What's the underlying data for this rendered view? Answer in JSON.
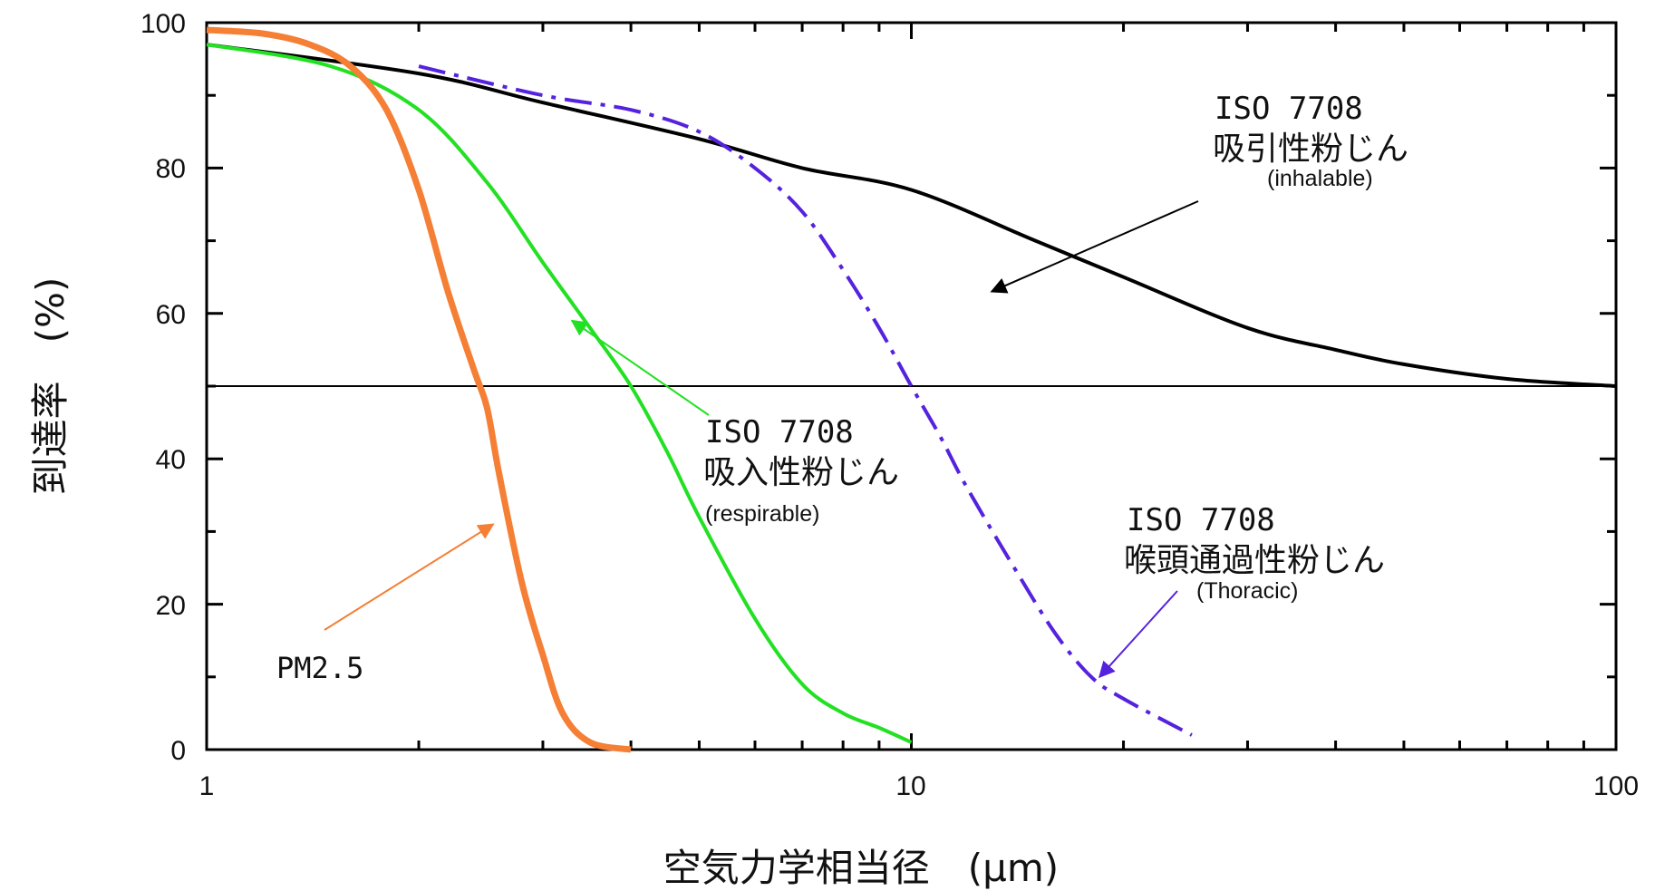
{
  "chart_data": {
    "type": "line",
    "title": "",
    "xlabel": "空気力学相当径　(μm)",
    "ylabel": "到達率　(%)",
    "xscale": "log",
    "xlim": [
      1,
      100
    ],
    "ylim": [
      0,
      100
    ],
    "xticks": [
      "1",
      "10",
      "100"
    ],
    "yticks": [
      "0",
      "20",
      "40",
      "60",
      "80",
      "100"
    ],
    "grid": false,
    "reference_line": {
      "y": 50,
      "color": "#000000"
    },
    "series": [
      {
        "name": "PM2.5",
        "color": "#f47f35",
        "style": "solid-thick",
        "x": [
          1.0,
          1.2,
          1.4,
          1.6,
          1.8,
          2.0,
          2.2,
          2.4,
          2.5,
          2.6,
          2.8,
          3.0,
          3.2,
          3.5,
          4.0
        ],
        "y": [
          99,
          98.5,
          97,
          94,
          88,
          77,
          63,
          52,
          47,
          38,
          23,
          13,
          5,
          1,
          0
        ]
      },
      {
        "name": "ISO 7708 吸入性粉じん",
        "color": "#22e022",
        "style": "solid",
        "x": [
          1.0,
          1.5,
          2.0,
          2.5,
          3.0,
          3.5,
          4.0,
          4.5,
          5.0,
          6.0,
          7.0,
          8.0,
          9.0,
          10.0
        ],
        "y": [
          97,
          94,
          88,
          78,
          67,
          58,
          50,
          41,
          32,
          18,
          9,
          5,
          3,
          1
        ]
      },
      {
        "name": "ISO 7708 喉頭通過性粉じん",
        "color": "#5522dd",
        "style": "dash-dot",
        "x": [
          2.0,
          3.0,
          4.0,
          5.0,
          6.0,
          7.0,
          8.0,
          9.0,
          10.0,
          11.0,
          12.0,
          14.0,
          16.0,
          18.0,
          20.0,
          25.0
        ],
        "y": [
          94,
          90,
          88,
          85,
          80,
          74,
          66,
          58,
          50,
          43,
          36,
          25,
          16,
          10,
          7,
          2
        ]
      },
      {
        "name": "ISO 7708 吸引性粉じん",
        "color": "#000000",
        "style": "solid",
        "x": [
          1,
          2,
          3,
          5,
          7,
          10,
          15,
          20,
          30,
          40,
          50,
          70,
          100
        ],
        "y": [
          97,
          93,
          89,
          84,
          80,
          77,
          70,
          65,
          58,
          55,
          53,
          51,
          50
        ]
      }
    ],
    "annotations": [
      {
        "lines": [
          "ISO 7708",
          "吸引性粉じん",
          "(inhalable)"
        ],
        "arrow_color": "#000000",
        "arrow_to": [
          13,
          63
        ]
      },
      {
        "lines": [
          "ISO 7708",
          "吸入性粉じん",
          "(respirable)"
        ],
        "arrow_color": "#22e022",
        "arrow_to": [
          3.3,
          59
        ]
      },
      {
        "lines": [
          "ISO 7708",
          "喉頭通過性粉じん",
          "(Thoracic)"
        ],
        "arrow_color": "#5522dd",
        "arrow_to": [
          18.5,
          10
        ]
      },
      {
        "lines": [
          "PM2.5"
        ],
        "arrow_color": "#f47f35",
        "arrow_to": [
          2.55,
          31
        ]
      }
    ]
  }
}
